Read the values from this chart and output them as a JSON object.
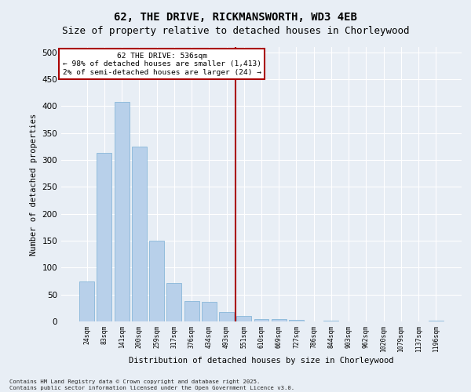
{
  "title1": "62, THE DRIVE, RICKMANSWORTH, WD3 4EB",
  "title2": "Size of property relative to detached houses in Chorleywood",
  "xlabel": "Distribution of detached houses by size in Chorleywood",
  "ylabel": "Number of detached properties",
  "categories": [
    "24sqm",
    "83sqm",
    "141sqm",
    "200sqm",
    "259sqm",
    "317sqm",
    "376sqm",
    "434sqm",
    "493sqm",
    "551sqm",
    "610sqm",
    "669sqm",
    "727sqm",
    "786sqm",
    "844sqm",
    "903sqm",
    "962sqm",
    "1020sqm",
    "1079sqm",
    "1137sqm",
    "1196sqm"
  ],
  "values": [
    75,
    313,
    408,
    325,
    150,
    71,
    38,
    36,
    17,
    10,
    5,
    5,
    3,
    0,
    1,
    0,
    0,
    0,
    0,
    0,
    2
  ],
  "bar_color": "#b8d0ea",
  "bar_edge_color": "#7aafd4",
  "vline_color": "#aa0000",
  "annotation_title": "62 THE DRIVE: 536sqm",
  "annotation_line1": "← 98% of detached houses are smaller (1,413)",
  "annotation_line2": "2% of semi-detached houses are larger (24) →",
  "annotation_box_color": "#ffffff",
  "annotation_border_color": "#aa0000",
  "ylim": [
    0,
    510
  ],
  "yticks": [
    0,
    50,
    100,
    150,
    200,
    250,
    300,
    350,
    400,
    450,
    500
  ],
  "footer": "Contains HM Land Registry data © Crown copyright and database right 2025.\nContains public sector information licensed under the Open Government Licence v3.0.",
  "bg_color": "#e8eef5",
  "grid_color": "#ffffff",
  "title1_fontsize": 10,
  "title2_fontsize": 9,
  "vline_bar_index": 9.0
}
